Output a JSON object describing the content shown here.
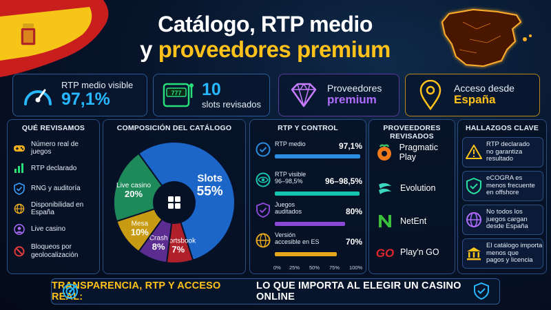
{
  "title": {
    "line1": "Catálogo, RTP medio",
    "line2_prefix": "y ",
    "line2_highlight": "proveedores premium"
  },
  "kpis": [
    {
      "small": "RTP medio visible",
      "big": "97,1%"
    },
    {
      "big": "10",
      "small": "slots revisados"
    },
    {
      "small": "Proveedores",
      "big": "premium"
    },
    {
      "small": "Acceso desde",
      "big": "España"
    }
  ],
  "que_revisamos": {
    "heading": "QUÉ REVISAMOS",
    "items": [
      {
        "label": "Número real de juegos",
        "icon": "gamepad-icon"
      },
      {
        "label": "RTP declarado",
        "icon": "bar-chart-icon"
      },
      {
        "label": "RNG y auditoría",
        "icon": "shield-check-icon"
      },
      {
        "label": "Disponibilidad en España",
        "icon": "globe-icon"
      },
      {
        "label": "Live casino",
        "icon": "dealer-icon"
      },
      {
        "label": "Bloqueos por geolocalización",
        "icon": "block-icon"
      }
    ]
  },
  "composicion": {
    "heading": "COMPOSICIÓN DEL CATÁLOGO",
    "center_icon": "grid-icon"
  },
  "chart_data": {
    "type": "pie",
    "categories": [
      "Slots",
      "Sportsbook",
      "Crash",
      "Mesa",
      "Live casino"
    ],
    "values": [
      55,
      7,
      8,
      10,
      20
    ],
    "labels": [
      "55%",
      "7%",
      "8%",
      "10%",
      "20%"
    ],
    "colors": [
      "#1c66c9",
      "#b0202a",
      "#5b2d91",
      "#c99b12",
      "#1e8a5a"
    ]
  },
  "rtp_control": {
    "heading": "RTP Y CONTROL",
    "rows": [
      {
        "label": "RTP medio",
        "value": "97,1%",
        "pct": 97.1,
        "color": "#2a8de0",
        "icon": "check-badge-icon"
      },
      {
        "label": "RTP visible\n96–98,5%",
        "value": "96–98,5%",
        "pct": 96,
        "color": "#17c4b0",
        "icon": "eye-icon"
      },
      {
        "label": "Juegos\nauditados",
        "value": "80%",
        "pct": 80,
        "color": "#8a48d6",
        "icon": "shield-check-icon"
      },
      {
        "label": "Versión\naccesible en ES",
        "value": "70%",
        "pct": 70,
        "color": "#e6a81a",
        "icon": "globe-icon"
      }
    ],
    "axis_ticks": [
      "0%",
      "25%",
      "50%",
      "75%",
      "100%"
    ]
  },
  "proveedores": {
    "heading": "PROVEEDORES REVISADOS",
    "items": [
      {
        "name": "Pragmatic Play",
        "icon": "pragmatic-logo-icon"
      },
      {
        "name": "Evolution",
        "icon": "evolution-logo-icon"
      },
      {
        "name": "NetEnt",
        "icon": "netent-logo-icon"
      },
      {
        "name": "Play'n GO",
        "icon": "playngo-logo-icon"
      }
    ]
  },
  "hallazgos": {
    "heading": "HALLAZGOS CLAVE",
    "items": [
      {
        "text": "RTP declarado\nno garantiza\nresultado",
        "icon": "warning-icon"
      },
      {
        "text": "eCOGRA es\nmenos frecuente\nen offshore",
        "icon": "shield-check-icon"
      },
      {
        "text": "No todos los\njuegos cargan\ndesde España",
        "icon": "globe-icon"
      },
      {
        "text": "El catálogo importa\nmenos que\npagos y licencia",
        "icon": "bank-icon"
      }
    ]
  },
  "banner": {
    "part1": "TRANSPARENCIA, RTP Y ACCESO REAL:",
    "part2": "LO QUE IMPORTA AL ELEGIR UN CASINO ONLINE"
  }
}
